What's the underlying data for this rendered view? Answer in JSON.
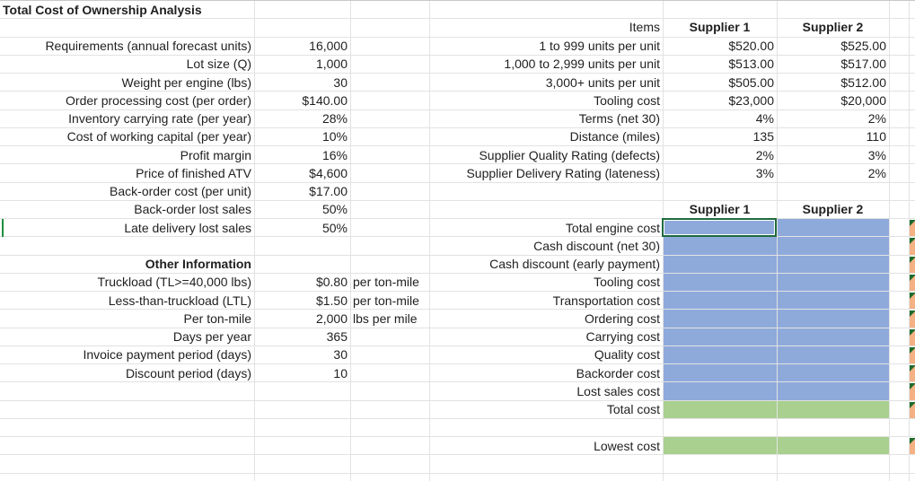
{
  "sheet": {
    "title": "Total Cost of Ownership Analysis",
    "colors": {
      "input_fill": "#8eaadb",
      "total_fill": "#a9d08e",
      "flag_fill": "#f4b183",
      "selection": "#1e6b3c",
      "gridline": "#e2e2e2"
    },
    "parameters": [
      {
        "label": "Requirements (annual forecast units)",
        "value": "16,000"
      },
      {
        "label": "Lot size (Q)",
        "value": "1,000"
      },
      {
        "label": "Weight per engine (lbs)",
        "value": "30"
      },
      {
        "label": "Order processing cost (per order)",
        "value": "$140.00"
      },
      {
        "label": "Inventory carrying rate (per year)",
        "value": "28%"
      },
      {
        "label": "Cost of working capital (per year)",
        "value": "10%"
      },
      {
        "label": "Profit margin",
        "value": "16%"
      },
      {
        "label": "Price of finished ATV",
        "value": "$4,600"
      },
      {
        "label": "Back-order cost (per unit)",
        "value": "$17.00"
      },
      {
        "label": "Back-order lost sales",
        "value": "50%"
      },
      {
        "label": "Late delivery lost sales",
        "value": "50%"
      }
    ],
    "other_info": {
      "heading": "Other Information",
      "rows": [
        {
          "label": "Truckload (TL>=40,000 lbs)",
          "value": "$0.80",
          "unit": "per ton-mile"
        },
        {
          "label": "Less-than-truckload (LTL)",
          "value": "$1.50",
          "unit": "per ton-mile"
        },
        {
          "label": "Per ton-mile",
          "value": "2,000",
          "unit": "lbs per mile"
        },
        {
          "label": "Days per year",
          "value": "365",
          "unit": ""
        },
        {
          "label": "Invoice payment period (days)",
          "value": "30",
          "unit": ""
        },
        {
          "label": "Discount period (days)",
          "value": "10",
          "unit": ""
        }
      ]
    },
    "supplier_table": {
      "headers": [
        "Items",
        "Supplier 1",
        "Supplier 2"
      ],
      "rows": [
        {
          "item": "1 to 999 units per unit",
          "s1": "$520.00",
          "s2": "$525.00"
        },
        {
          "item": "1,000 to 2,999 units per unit",
          "s1": "$513.00",
          "s2": "$517.00"
        },
        {
          "item": "3,000+ units per unit",
          "s1": "$505.00",
          "s2": "$512.00"
        },
        {
          "item": "Tooling cost",
          "s1": "$23,000",
          "s2": "$20,000"
        },
        {
          "item": "Terms (net 30)",
          "s1": "4%",
          "s2": "2%"
        },
        {
          "item": "Distance (miles)",
          "s1": "135",
          "s2": "110"
        },
        {
          "item": "Supplier Quality Rating (defects)",
          "s1": "2%",
          "s2": "3%"
        },
        {
          "item": "Supplier Delivery Rating (lateness)",
          "s1": "3%",
          "s2": "2%"
        }
      ]
    },
    "cost_table": {
      "headers": [
        "Supplier 1",
        "Supplier 2"
      ],
      "rows": [
        "Total engine cost",
        "Cash discount (net 30)",
        "Cash discount (early payment)",
        "Tooling cost",
        "Transportation cost",
        "Ordering cost",
        "Carrying cost",
        "Quality cost",
        "Backorder cost",
        "Lost sales cost",
        "Total cost"
      ],
      "lowest_label": "Lowest cost"
    }
  }
}
